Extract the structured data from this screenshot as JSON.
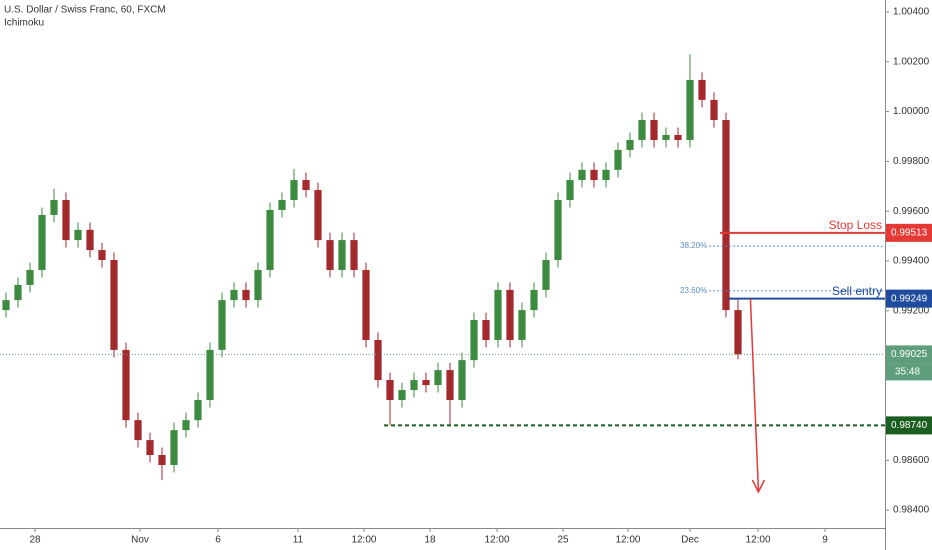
{
  "chart_data": {
    "type": "candlestick",
    "title": "U.S. Dollar / Swiss Franc, 60, FXCM",
    "subtitle": "Ichimoku",
    "x": [
      0,
      1,
      2,
      3,
      4,
      5,
      6,
      7,
      8,
      9,
      10,
      11,
      12,
      13,
      14,
      15,
      16,
      17,
      18,
      19,
      20,
      21,
      22,
      23,
      24,
      25,
      26,
      27,
      28,
      29,
      30,
      31,
      32,
      33,
      34,
      35,
      36,
      37,
      38,
      39,
      40,
      41,
      42,
      43,
      44,
      45,
      46,
      47,
      48,
      49,
      50,
      51,
      52,
      53,
      54,
      55,
      56,
      57,
      58,
      59,
      60,
      61
    ],
    "open": [
      0.99203,
      0.99243,
      0.99304,
      0.99364,
      0.99585,
      0.99645,
      0.99484,
      0.99525,
      0.99444,
      0.99404,
      0.99043,
      0.98761,
      0.98681,
      0.98621,
      0.98581,
      0.98721,
      0.98761,
      0.98842,
      0.99043,
      0.99243,
      0.99284,
      0.99243,
      0.99364,
      0.99605,
      0.99645,
      0.99725,
      0.99685,
      0.99484,
      0.99364,
      0.99484,
      0.99364,
      0.99083,
      0.98922,
      0.98842,
      0.98882,
      0.98922,
      0.98902,
      0.98962,
      0.98842,
      0.99002,
      0.99163,
      0.99083,
      0.99284,
      0.99083,
      0.99203,
      0.99284,
      0.99404,
      0.99645,
      0.99725,
      0.99766,
      0.99725,
      0.99766,
      0.99846,
      0.99886,
      0.99966,
      0.99886,
      0.99906,
      0.99886,
      1.00127,
      1.00047,
      0.99966,
      0.99203
    ],
    "high": [
      0.99273,
      0.99334,
      0.99394,
      0.99615,
      0.9969,
      0.99675,
      0.99555,
      0.99555,
      0.99474,
      0.99434,
      0.99073,
      0.98791,
      0.98711,
      0.98651,
      0.98751,
      0.98791,
      0.98872,
      0.99073,
      0.99273,
      0.99314,
      0.99314,
      0.99394,
      0.99635,
      0.99675,
      0.9977,
      0.99755,
      0.99715,
      0.99514,
      0.99514,
      0.99514,
      0.99394,
      0.99113,
      0.98952,
      0.98912,
      0.98952,
      0.98952,
      0.98992,
      0.98992,
      0.99032,
      0.99193,
      0.99193,
      0.99314,
      0.99314,
      0.99233,
      0.99314,
      0.99434,
      0.99675,
      0.99755,
      0.99796,
      0.99796,
      0.99796,
      0.99876,
      0.99916,
      0.99996,
      0.99996,
      0.99936,
      0.99936,
      1.0023,
      1.00157,
      1.00077,
      0.99996,
      0.99249
    ],
    "low": [
      0.99173,
      0.99213,
      0.99274,
      0.99334,
      0.99555,
      0.99454,
      0.99454,
      0.99414,
      0.99374,
      0.99013,
      0.98731,
      0.98651,
      0.98591,
      0.9852,
      0.98551,
      0.98691,
      0.98731,
      0.98812,
      0.99013,
      0.99213,
      0.99213,
      0.99213,
      0.99334,
      0.99575,
      0.99615,
      0.99655,
      0.99454,
      0.99334,
      0.99334,
      0.99334,
      0.99053,
      0.98892,
      0.9874,
      0.98812,
      0.98852,
      0.98872,
      0.98872,
      0.9874,
      0.98812,
      0.98972,
      0.99053,
      0.99053,
      0.99053,
      0.99053,
      0.99173,
      0.99254,
      0.99374,
      0.99615,
      0.99695,
      0.99695,
      0.99695,
      0.99736,
      0.99816,
      0.99856,
      0.99856,
      0.99856,
      0.99856,
      0.99856,
      1.00017,
      0.99936,
      0.99173,
      0.99005
    ],
    "close": [
      0.99243,
      0.99304,
      0.99364,
      0.99585,
      0.99645,
      0.99484,
      0.99525,
      0.99444,
      0.99404,
      0.99043,
      0.98761,
      0.98681,
      0.98621,
      0.98581,
      0.98721,
      0.98761,
      0.98842,
      0.99043,
      0.99243,
      0.99284,
      0.99243,
      0.99364,
      0.99605,
      0.99645,
      0.99725,
      0.99685,
      0.99484,
      0.99364,
      0.99484,
      0.99364,
      0.99083,
      0.98922,
      0.98842,
      0.98882,
      0.98922,
      0.98902,
      0.98962,
      0.98842,
      0.99002,
      0.99163,
      0.99083,
      0.99284,
      0.99083,
      0.99203,
      0.99284,
      0.99404,
      0.99645,
      0.99725,
      0.99766,
      0.99725,
      0.99766,
      0.99846,
      0.99886,
      0.99966,
      0.99886,
      0.99906,
      0.99886,
      1.00127,
      1.00047,
      0.99966,
      0.99203,
      0.99025
    ],
    "up_color": "#3d8b40",
    "down_color": "#a3292c",
    "xlim": [
      -0.5,
      73.25
    ],
    "xticks": [
      {
        "value": 2.42,
        "label": "28"
      },
      {
        "value": 11.17,
        "label": "Nov"
      },
      {
        "value": 17.67,
        "label": "6"
      },
      {
        "value": 24.33,
        "label": "11"
      },
      {
        "value": 29.83,
        "label": "12:00"
      },
      {
        "value": 35.33,
        "label": "18"
      },
      {
        "value": 40.92,
        "label": "12:00"
      },
      {
        "value": 46.42,
        "label": "25"
      },
      {
        "value": 51.83,
        "label": "12:00"
      },
      {
        "value": 57,
        "label": "Dec"
      },
      {
        "value": 62.67,
        "label": "12:00"
      },
      {
        "value": 68.25,
        "label": "9"
      }
    ],
    "ylim": [
      0.98328,
      1.00448
    ],
    "yticks": [
      {
        "value": 1.004,
        "label": "1.00400"
      },
      {
        "value": 1.002,
        "label": "1.00200"
      },
      {
        "value": 1.0,
        "label": "1.00000"
      },
      {
        "value": 0.998,
        "label": "0.99800"
      },
      {
        "value": 0.996,
        "label": "0.99600"
      },
      {
        "value": 0.994,
        "label": "0.99400"
      },
      {
        "value": 0.992,
        "label": "0.99200"
      },
      {
        "value": 0.986,
        "label": "0.98600"
      },
      {
        "value": 0.984,
        "label": "0.98400"
      }
    ],
    "grid": false,
    "levels": [
      {
        "label": "Stop Loss",
        "value": 0.99513,
        "price_label": "0.99513",
        "color": "#e53935",
        "from_x": 59.5,
        "style": "solid"
      },
      {
        "label": "Sell entry",
        "value": 0.99249,
        "price_label": "0.99249",
        "color": "#1e4b9e",
        "from_x": 60.2,
        "style": "solid"
      },
      {
        "value": 0.9874,
        "price_label": "0.98740",
        "color": "#1b5e20",
        "from_x": 31.5,
        "style": "dashed"
      }
    ],
    "fib_levels": [
      {
        "label": "38.20%",
        "value": 0.9946,
        "from_x": 58.6
      },
      {
        "label": "23.60%",
        "value": 0.9928,
        "from_x": 58.6
      }
    ],
    "fib_color": "#5b8fc7",
    "last_price": {
      "value": 0.99025,
      "label": "0.99025",
      "countdown": "35:48",
      "color": "#5e9e7c"
    }
  }
}
